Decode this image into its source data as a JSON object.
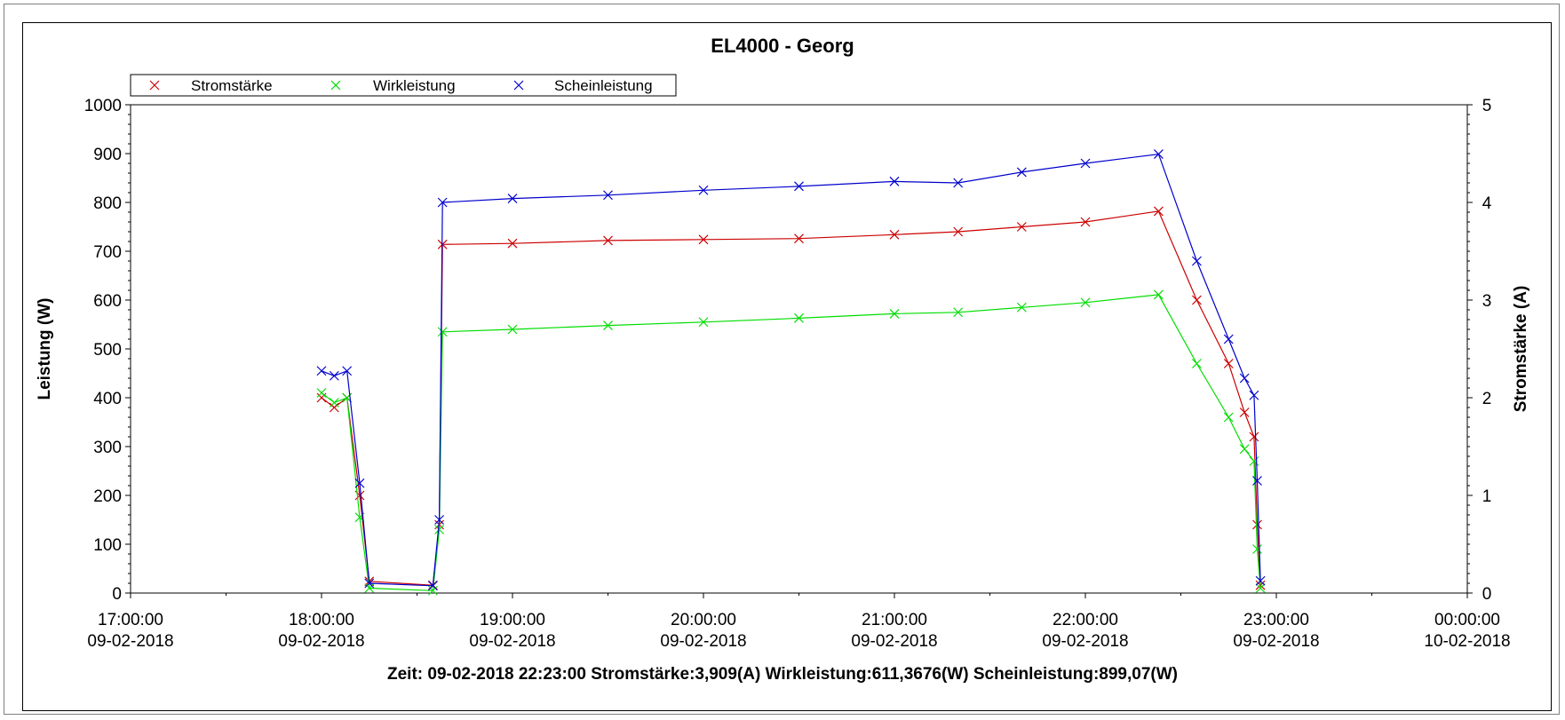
{
  "chart_data": {
    "type": "scatter",
    "title": "EL4000 - Georg",
    "ylabel": "Leistung (W)",
    "y2label": "Stromstärke (A)",
    "ylim": [
      0,
      1000
    ],
    "y2lim": [
      0,
      5
    ],
    "yticks": [
      "0",
      "100",
      "200",
      "300",
      "400",
      "500",
      "600",
      "700",
      "800",
      "900",
      "1000"
    ],
    "y2ticks": [
      "0",
      "1",
      "2",
      "3",
      "4",
      "5"
    ],
    "xlim": [
      "09-02-2018 17:00:00",
      "10-02-2018 00:00:00"
    ],
    "xticks": [
      {
        "time": "17:00:00",
        "date": "09-02-2018"
      },
      {
        "time": "18:00:00",
        "date": "09-02-2018"
      },
      {
        "time": "19:00:00",
        "date": "09-02-2018"
      },
      {
        "time": "20:00:00",
        "date": "09-02-2018"
      },
      {
        "time": "21:00:00",
        "date": "09-02-2018"
      },
      {
        "time": "22:00:00",
        "date": "09-02-2018"
      },
      {
        "time": "23:00:00",
        "date": "09-02-2018"
      },
      {
        "time": "00:00:00",
        "date": "10-02-2018"
      }
    ],
    "legend_position": "top-left",
    "series": [
      {
        "name": "Stromstärke",
        "color": "#cc0000",
        "axis": "right",
        "unit": "A",
        "x": [
          "09-02-2018 18:00:00",
          "09-02-2018 18:04:00",
          "09-02-2018 18:08:00",
          "09-02-2018 18:12:00",
          "09-02-2018 18:15:00",
          "09-02-2018 18:35:00",
          "09-02-2018 18:37:00",
          "09-02-2018 18:38:00",
          "09-02-2018 19:00:00",
          "09-02-2018 19:30:00",
          "09-02-2018 20:00:00",
          "09-02-2018 20:30:00",
          "09-02-2018 21:00:00",
          "09-02-2018 21:20:00",
          "09-02-2018 21:40:00",
          "09-02-2018 22:00:00",
          "09-02-2018 22:23:00",
          "09-02-2018 22:35:00",
          "09-02-2018 22:45:00",
          "09-02-2018 22:50:00",
          "09-02-2018 22:53:00",
          "09-02-2018 22:54:00",
          "09-02-2018 22:55:00"
        ],
        "y": [
          2.0,
          1.9,
          2.0,
          1.0,
          0.12,
          0.08,
          0.7,
          3.57,
          3.58,
          3.61,
          3.62,
          3.63,
          3.67,
          3.7,
          3.75,
          3.8,
          3.91,
          3.0,
          2.35,
          1.85,
          1.6,
          0.7,
          0.08
        ]
      },
      {
        "name": "Wirkleistung",
        "color": "#00dd00",
        "axis": "left",
        "unit": "W",
        "x": [
          "09-02-2018 18:00:00",
          "09-02-2018 18:04:00",
          "09-02-2018 18:08:00",
          "09-02-2018 18:12:00",
          "09-02-2018 18:15:00",
          "09-02-2018 18:35:00",
          "09-02-2018 18:37:00",
          "09-02-2018 18:38:00",
          "09-02-2018 19:00:00",
          "09-02-2018 19:30:00",
          "09-02-2018 20:00:00",
          "09-02-2018 20:30:00",
          "09-02-2018 21:00:00",
          "09-02-2018 21:20:00",
          "09-02-2018 21:40:00",
          "09-02-2018 22:00:00",
          "09-02-2018 22:23:00",
          "09-02-2018 22:35:00",
          "09-02-2018 22:45:00",
          "09-02-2018 22:50:00",
          "09-02-2018 22:53:00",
          "09-02-2018 22:54:00",
          "09-02-2018 22:55:00"
        ],
        "y": [
          410,
          390,
          400,
          155,
          10,
          5,
          130,
          535,
          540,
          548,
          555,
          563,
          572,
          575,
          585,
          595,
          611,
          470,
          360,
          295,
          270,
          90,
          10
        ]
      },
      {
        "name": "Scheinleistung",
        "color": "#0000cc",
        "axis": "left",
        "unit": "W",
        "x": [
          "09-02-2018 18:00:00",
          "09-02-2018 18:04:00",
          "09-02-2018 18:08:00",
          "09-02-2018 18:12:00",
          "09-02-2018 18:15:00",
          "09-02-2018 18:35:00",
          "09-02-2018 18:37:00",
          "09-02-2018 18:38:00",
          "09-02-2018 19:00:00",
          "09-02-2018 19:30:00",
          "09-02-2018 20:00:00",
          "09-02-2018 20:30:00",
          "09-02-2018 21:00:00",
          "09-02-2018 21:20:00",
          "09-02-2018 21:40:00",
          "09-02-2018 22:00:00",
          "09-02-2018 22:23:00",
          "09-02-2018 22:35:00",
          "09-02-2018 22:45:00",
          "09-02-2018 22:50:00",
          "09-02-2018 22:53:00",
          "09-02-2018 22:54:00",
          "09-02-2018 22:55:00"
        ],
        "y": [
          455,
          445,
          455,
          225,
          20,
          15,
          150,
          800,
          808,
          815,
          825,
          833,
          843,
          840,
          862,
          880,
          899,
          680,
          520,
          440,
          405,
          230,
          25
        ]
      }
    ]
  },
  "status_line": "Zeit: 09-02-2018 22:23:00 Stromstärke:3,909(A) Wirkleistung:611,3676(W) Scheinleistung:899,07(W)"
}
